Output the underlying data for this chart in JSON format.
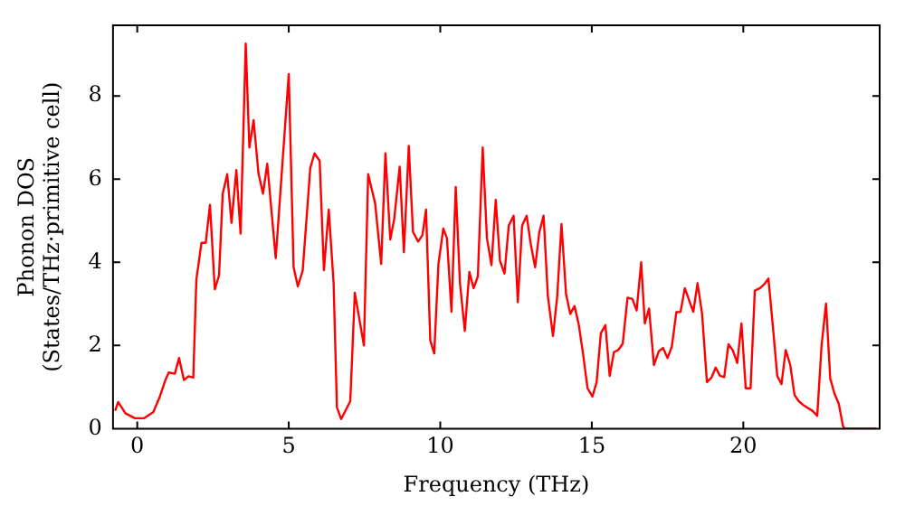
{
  "chart_data": {
    "type": "line",
    "xlabel": "Frequency (THz)",
    "ylabel": "Phonon DOS\n(States/THz·primitive cell)",
    "xlim": [
      -0.8,
      24.5
    ],
    "xticks": [
      0,
      5,
      10,
      15,
      20
    ],
    "ylim": [
      0,
      9.7
    ],
    "yticks": [
      0,
      2,
      4,
      6,
      8
    ],
    "grid": false,
    "legend": false,
    "marker": "none",
    "line_style": "solid",
    "series": [
      {
        "color": "#ff0000",
        "x": [
          -0.73,
          -0.63,
          -0.39,
          -0.08,
          0.22,
          0.53,
          0.73,
          0.93,
          1.04,
          1.24,
          1.38,
          1.54,
          1.69,
          1.85,
          1.95,
          2.12,
          2.26,
          2.4,
          2.56,
          2.7,
          2.82,
          2.97,
          3.11,
          3.27,
          3.41,
          3.58,
          3.7,
          3.84,
          4.0,
          4.15,
          4.29,
          4.57,
          5.0,
          5.16,
          5.3,
          5.46,
          5.71,
          5.85,
          6.02,
          6.16,
          6.32,
          6.48,
          6.59,
          6.73,
          7.03,
          7.18,
          7.48,
          7.62,
          7.85,
          8.05,
          8.19,
          8.35,
          8.48,
          8.66,
          8.8,
          8.96,
          9.1,
          9.27,
          9.41,
          9.53,
          9.67,
          9.8,
          9.94,
          10.1,
          10.22,
          10.37,
          10.51,
          10.65,
          10.81,
          10.96,
          11.1,
          11.24,
          11.4,
          11.54,
          11.69,
          11.83,
          11.97,
          12.12,
          12.26,
          12.42,
          12.56,
          12.7,
          12.85,
          12.99,
          13.13,
          13.27,
          13.41,
          13.55,
          13.72,
          13.86,
          14.0,
          14.15,
          14.29,
          14.43,
          14.57,
          14.71,
          14.86,
          15.02,
          15.16,
          15.3,
          15.45,
          15.59,
          15.73,
          15.87,
          16.02,
          16.18,
          16.34,
          16.48,
          16.63,
          16.75,
          16.89,
          17.05,
          17.21,
          17.35,
          17.5,
          17.64,
          17.79,
          17.93,
          18.07,
          18.21,
          18.35,
          18.49,
          18.64,
          18.8,
          18.95,
          19.09,
          19.23,
          19.37,
          19.51,
          19.65,
          19.8,
          19.94,
          20.08,
          20.24,
          20.38,
          20.55,
          20.69,
          20.83,
          20.98,
          21.12,
          21.26,
          21.4,
          21.55,
          21.69,
          21.83,
          22.01,
          22.28,
          22.44,
          22.58,
          22.73,
          22.87,
          23.01,
          23.15,
          23.29,
          23.35,
          24.4
        ],
        "values": [
          0.43,
          0.64,
          0.37,
          0.25,
          0.25,
          0.4,
          0.74,
          1.17,
          1.35,
          1.32,
          1.7,
          1.17,
          1.26,
          1.23,
          3.58,
          4.47,
          4.47,
          5.38,
          3.35,
          3.69,
          5.65,
          6.12,
          4.95,
          6.22,
          4.69,
          9.26,
          6.76,
          7.42,
          6.14,
          5.65,
          6.37,
          4.1,
          8.53,
          3.88,
          3.42,
          3.8,
          6.27,
          6.62,
          6.44,
          3.81,
          5.27,
          3.5,
          0.51,
          0.23,
          0.66,
          3.27,
          2.0,
          6.12,
          5.42,
          3.96,
          6.62,
          4.55,
          5.04,
          6.3,
          4.24,
          6.8,
          4.73,
          4.5,
          4.65,
          5.27,
          2.12,
          1.81,
          3.96,
          4.81,
          4.58,
          2.81,
          5.81,
          3.5,
          2.35,
          3.77,
          3.38,
          3.66,
          6.76,
          4.58,
          3.93,
          5.5,
          4.04,
          3.73,
          4.88,
          5.12,
          3.04,
          4.88,
          5.12,
          4.42,
          3.88,
          4.73,
          5.12,
          3.19,
          2.23,
          3.19,
          4.92,
          3.24,
          2.76,
          2.95,
          2.5,
          1.81,
          0.97,
          0.77,
          1.12,
          2.3,
          2.49,
          1.27,
          1.84,
          1.89,
          2.04,
          3.15,
          3.12,
          2.84,
          4.0,
          2.53,
          2.89,
          1.53,
          1.86,
          1.94,
          1.7,
          1.97,
          2.8,
          2.81,
          3.38,
          3.09,
          2.81,
          3.5,
          2.76,
          1.12,
          1.23,
          1.47,
          1.27,
          1.24,
          2.03,
          1.89,
          1.58,
          2.53,
          0.97,
          0.97,
          3.32,
          3.38,
          3.47,
          3.61,
          2.43,
          1.27,
          1.07,
          1.89,
          1.53,
          0.81,
          0.66,
          0.55,
          0.43,
          0.31,
          1.97,
          3.01,
          1.2,
          0.84,
          0.6,
          0.06,
          0,
          0
        ]
      }
    ]
  }
}
